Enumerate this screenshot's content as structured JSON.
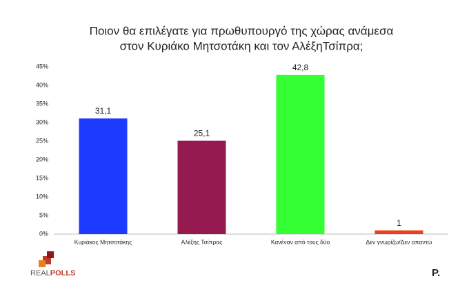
{
  "chart_data": {
    "type": "bar",
    "title": [
      "Ποιον θα επιλέγατε για πρωθυπουργό της χώρας ανάμεσα",
      "στον Κυριάκο Μητσοτάκη και τον ΑλέξηΤσίπρα;"
    ],
    "categories": [
      "Κυριάκος Μητσοτάκης",
      "Αλέξης Τσίπρας",
      "Κανέναν από τους δύο",
      "Δεν γνωρίζω/Δεν απαντώ"
    ],
    "values": [
      31.1,
      25.1,
      42.8,
      1
    ],
    "value_labels": [
      "31,1",
      "25,1",
      "42,8",
      "1"
    ],
    "colors": [
      "#1c3bff",
      "#941a50",
      "#33ff33",
      "#e8411c"
    ],
    "ylim": [
      0,
      45
    ],
    "yticks": [
      {
        "value": 0,
        "label": "0%"
      },
      {
        "value": 5,
        "label": "5%"
      },
      {
        "value": 10,
        "label": "10%"
      },
      {
        "value": 15,
        "label": "15%"
      },
      {
        "value": 20,
        "label": "20%"
      },
      {
        "value": 25,
        "label": "25%"
      },
      {
        "value": 30,
        "label": "30%"
      },
      {
        "value": 35,
        "label": "35%"
      },
      {
        "value": 40,
        "label": "40%"
      },
      {
        "value": 45,
        "label": "45%"
      }
    ],
    "grid": false
  },
  "logos": {
    "left": [
      "REAL",
      "POLLS"
    ],
    "right": "P."
  }
}
